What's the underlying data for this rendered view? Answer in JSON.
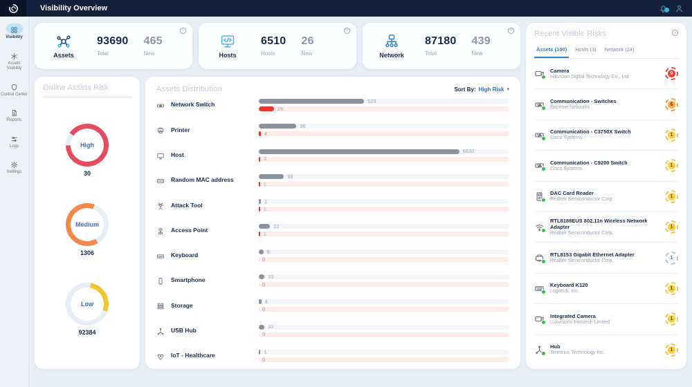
{
  "topbar": {
    "title": "Visibility Overview"
  },
  "sidebar": {
    "items": [
      {
        "label": "Visibility",
        "icon": "grid",
        "active": true
      },
      {
        "label": "Assets Visibility",
        "icon": "asterisk",
        "active": false
      },
      {
        "label": "Control Center",
        "icon": "shield",
        "active": false
      },
      {
        "label": "Reports",
        "icon": "doc",
        "active": false
      },
      {
        "label": "Logs",
        "icon": "sliders",
        "active": false
      },
      {
        "label": "Settings",
        "icon": "gear",
        "active": false
      }
    ]
  },
  "stat_cards": [
    {
      "name": "Assets",
      "icon": "assets",
      "icon_color": "#24507e",
      "value": "93690",
      "value_label": "Total",
      "new_value": "465",
      "new_label": "New"
    },
    {
      "name": "Hosts",
      "icon": "hosts",
      "icon_color": "#4ab8e8",
      "value": "6510",
      "value_label": "Hosts",
      "new_value": "26",
      "new_label": "New"
    },
    {
      "name": "Network",
      "icon": "network",
      "icon_color": "#3a86d6",
      "value": "87180",
      "value_label": "Total",
      "new_value": "439",
      "new_label": "New"
    }
  ],
  "risk_panel": {
    "title": "Online Assets Risk",
    "rings": [
      {
        "label": "High",
        "value": "30",
        "color": "#e84a5f",
        "pct": 90,
        "from": -55
      },
      {
        "label": "Medium",
        "value": "1306",
        "color": "#f2894a",
        "pct": 64,
        "from": 150
      },
      {
        "label": "Low",
        "value": "92384",
        "color": "#f4c430",
        "pct": 28,
        "from": 10
      }
    ]
  },
  "distribution": {
    "title": "Assets Distribution",
    "sort_label": "Sort By:",
    "sort_value": "High Risk",
    "sort_caret": "▾",
    "rows": [
      {
        "label": "Network Switch",
        "icon": "switch",
        "total": "523",
        "total_pct": 42,
        "risk": "29",
        "risk_pct": 6
      },
      {
        "label": "Printer",
        "icon": "printer",
        "total": "96",
        "total_pct": 15,
        "risk": "4",
        "risk_pct": 0.8
      },
      {
        "label": "Host",
        "icon": "monitor",
        "total": "6630",
        "total_pct": 80,
        "risk": "2",
        "risk_pct": 0.6
      },
      {
        "label": "Random MAC address",
        "icon": "mac",
        "total": "99",
        "total_pct": 10,
        "risk": "1",
        "risk_pct": 0.5
      },
      {
        "label": "Attack Tool",
        "icon": "attack",
        "total": "1",
        "total_pct": 0.8,
        "risk": "1",
        "risk_pct": 0.5
      },
      {
        "label": "Access Point",
        "icon": "ap",
        "total": "22",
        "total_pct": 4.5,
        "risk": "1",
        "risk_pct": 0.5
      },
      {
        "label": "Keyboard",
        "icon": "keyboard",
        "total": "9",
        "total_pct": 1.8,
        "risk": "0",
        "risk_pct": 0
      },
      {
        "label": "Smartphone",
        "icon": "phone",
        "total": "10",
        "total_pct": 2.2,
        "risk": "0",
        "risk_pct": 0
      },
      {
        "label": "Storage",
        "icon": "storage",
        "total": "4",
        "total_pct": 1.0,
        "risk": "0",
        "risk_pct": 0
      },
      {
        "label": "USB Hub",
        "icon": "usbhub",
        "total": "10",
        "total_pct": 2.2,
        "risk": "0",
        "risk_pct": 0
      },
      {
        "label": "IoT - Healthcare",
        "icon": "heart",
        "total": "1",
        "total_pct": 0.6,
        "risk": "0",
        "risk_pct": 0
      }
    ]
  },
  "risks_panel": {
    "title": "Recent Visible Risks",
    "tabs": [
      {
        "label": "Assets (100)",
        "active": true
      },
      {
        "label": "Hosts (3)",
        "active": false
      },
      {
        "label": "Network (24)",
        "active": false
      }
    ],
    "items": [
      {
        "title": "Camera",
        "vendor": "Hikvision Digital Technology Co., Ltd.",
        "icon": "camera",
        "badge": "9",
        "badge_ring": "#e8453c",
        "badge_bg": "#e8453c",
        "badge_fg": "#ffffff"
      },
      {
        "title": "Communication - Switches",
        "vendor": "Extreme Networks",
        "icon": "switch",
        "badge": "6",
        "badge_ring": "#f29b38",
        "badge_bg": "#f5a94c",
        "badge_fg": "#6e4103"
      },
      {
        "title": "Communication - C3750X Switch",
        "vendor": "Cisco Systems",
        "icon": "switch",
        "badge": "1",
        "badge_ring": "#f2c53d",
        "badge_bg": "#f5ce45",
        "badge_fg": "#6b5200"
      },
      {
        "title": "Communication - C9200 Switch",
        "vendor": "Cisco Systems",
        "icon": "switch",
        "badge": "1",
        "badge_ring": "#f2c53d",
        "badge_bg": "#f5ce45",
        "badge_fg": "#6b5200"
      },
      {
        "title": "DAC Card Reader",
        "vendor": "Realtek Semiconductor Corp.",
        "icon": "cardreader",
        "badge": "1",
        "badge_ring": "#f2c53d",
        "badge_bg": "#f5ce45",
        "badge_fg": "#6b5200"
      },
      {
        "title": "RTL8188EUS 802.11n Wireless Network Adapter",
        "vendor": "Realtek Semiconductor Corp.",
        "icon": "wifi",
        "badge": "1",
        "badge_ring": "#f2c53d",
        "badge_bg": "#f5ce45",
        "badge_fg": "#6b5200"
      },
      {
        "title": "RTL8153 Gigabit Ethernet Adapter",
        "vendor": "Realtek Semiconductor Corp.",
        "icon": "ethernet",
        "badge": "1",
        "badge_ring": "#b9c0cc",
        "badge_bg": "#eef0f4",
        "badge_fg": "#6b7280"
      },
      {
        "title": "Keyboard K120",
        "vendor": "Logitech, Inc.",
        "icon": "keyboard",
        "badge": "1",
        "badge_ring": "#f2c53d",
        "badge_bg": "#f5ce45",
        "badge_fg": "#6b5200"
      },
      {
        "title": "Integrated Camera",
        "vendor": "Luxvisions Innotech Limited",
        "icon": "camera",
        "badge": "1",
        "badge_ring": "#f2c53d",
        "badge_bg": "#f5ce45",
        "badge_fg": "#6b5200"
      },
      {
        "title": "Hub",
        "vendor": "Terminus Technology Inc.",
        "icon": "hub",
        "badge": "1",
        "badge_ring": "#f2c53d",
        "badge_bg": "#f5ce45",
        "badge_fg": "#6b5200"
      }
    ]
  },
  "misc": {
    "info_glyph": "i"
  }
}
